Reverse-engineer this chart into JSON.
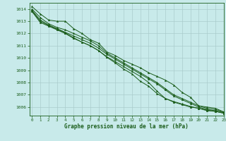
{
  "xlabel": "Graphe pression niveau de la mer (hPa)",
  "ylim": [
    1005.3,
    1014.5
  ],
  "xlim": [
    -0.3,
    23
  ],
  "yticks": [
    1006,
    1007,
    1008,
    1009,
    1010,
    1011,
    1012,
    1013,
    1014
  ],
  "xticks": [
    0,
    1,
    2,
    3,
    4,
    5,
    6,
    7,
    8,
    9,
    10,
    11,
    12,
    13,
    14,
    15,
    16,
    17,
    18,
    19,
    20,
    21,
    22,
    23
  ],
  "background_color": "#c8eaea",
  "grid_color_major": "#aacccc",
  "grid_color_minor": "#b8dddd",
  "line_color": "#1a5c1a",
  "series": [
    [
      1014.2,
      1013.6,
      1013.1,
      1013.0,
      1013.0,
      1012.4,
      1012.0,
      1011.5,
      1011.2,
      1010.5,
      1010.2,
      1009.8,
      1009.5,
      1009.2,
      1008.8,
      1008.5,
      1008.2,
      1007.8,
      1007.2,
      1006.8,
      1006.1,
      1006.0,
      1005.9,
      1005.6
    ],
    [
      1014.0,
      1013.3,
      1012.8,
      1012.5,
      1012.3,
      1012.0,
      1011.7,
      1011.4,
      1011.0,
      1010.4,
      1010.0,
      1009.6,
      1009.2,
      1008.8,
      1008.4,
      1008.0,
      1007.5,
      1007.0,
      1006.7,
      1006.4,
      1006.1,
      1005.9,
      1005.8,
      1005.6
    ],
    [
      1013.9,
      1013.1,
      1012.7,
      1012.4,
      1012.1,
      1011.8,
      1011.5,
      1011.2,
      1010.8,
      1010.3,
      1009.9,
      1009.5,
      1009.1,
      1008.7,
      1008.3,
      1007.9,
      1007.4,
      1006.9,
      1006.6,
      1006.3,
      1006.0,
      1005.8,
      1005.7,
      1005.55
    ],
    [
      1013.8,
      1012.9,
      1012.6,
      1012.3,
      1012.0,
      1011.6,
      1011.3,
      1011.0,
      1010.6,
      1010.1,
      1009.7,
      1009.3,
      1008.9,
      1008.5,
      1008.0,
      1007.3,
      1006.7,
      1006.4,
      1006.2,
      1006.0,
      1005.9,
      1005.7,
      1005.65,
      1005.5
    ],
    [
      1013.85,
      1013.0,
      1012.65,
      1012.35,
      1012.05,
      1011.65,
      1011.3,
      1011.0,
      1010.6,
      1010.05,
      1009.6,
      1009.1,
      1008.7,
      1008.1,
      1007.7,
      1007.1,
      1006.7,
      1006.45,
      1006.25,
      1006.05,
      1005.9,
      1005.75,
      1005.65,
      1005.5
    ]
  ]
}
